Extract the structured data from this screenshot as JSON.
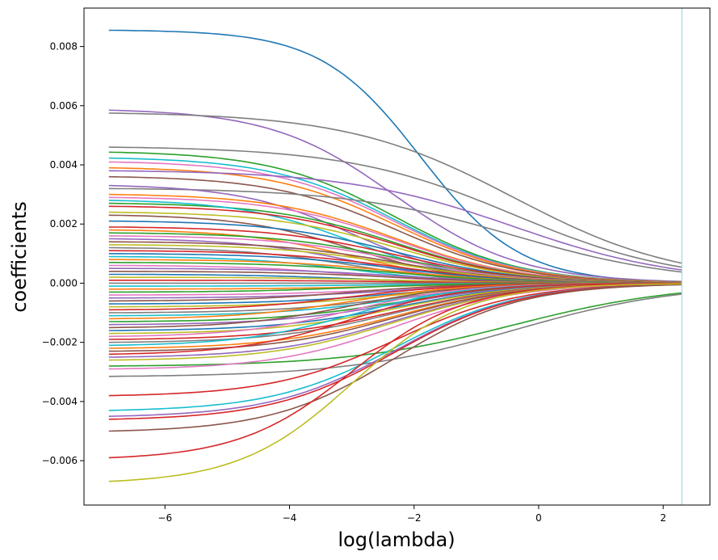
{
  "chart_data": {
    "type": "line",
    "xlabel": "log(lambda)",
    "ylabel": "coefficients",
    "xlim": [
      -7.3,
      2.75
    ],
    "ylim": [
      -0.0075,
      0.0093
    ],
    "xticks": [
      -6,
      -4,
      -2,
      0,
      2
    ],
    "xtick_labels": [
      "−6",
      "−4",
      "−2",
      "0",
      "2"
    ],
    "yticks": [
      -0.006,
      -0.004,
      -0.002,
      0.0,
      0.002,
      0.004,
      0.006,
      0.008
    ],
    "ytick_labels": [
      "−0.006",
      "−0.004",
      "−0.002",
      "0.000",
      "0.002",
      "0.004",
      "0.006",
      "0.008"
    ],
    "vline": {
      "x": 2.3,
      "color": "#add8e6"
    },
    "x_start": -6.9,
    "x_end": 2.3,
    "palette": [
      "#1f77b4",
      "#ff7f0e",
      "#2ca02c",
      "#d62728",
      "#9467bd",
      "#8c564b",
      "#e377c2",
      "#7f7f7f",
      "#bcbd22",
      "#17becf"
    ],
    "series": [
      {
        "color": "#1f77b4",
        "start": 0.00855,
        "profile": "late"
      },
      {
        "color": "#9467bd",
        "start": 0.00585,
        "profile": "med"
      },
      {
        "color": "#7f7f7f",
        "start": 0.00575,
        "profile": "slow"
      },
      {
        "color": "#7f7f7f",
        "start": 0.0046,
        "profile": "slow"
      },
      {
        "color": "#2ca02c",
        "start": 0.00443,
        "profile": "med"
      },
      {
        "color": "#17becf",
        "start": 0.00423,
        "profile": "med"
      },
      {
        "color": "#e377c2",
        "start": 0.0041,
        "profile": "med"
      },
      {
        "color": "#ff7f0e",
        "start": 0.0039,
        "profile": "med"
      },
      {
        "color": "#9467bd",
        "start": 0.0038,
        "profile": "slow"
      },
      {
        "color": "#8c564b",
        "start": 0.0036,
        "profile": "med"
      },
      {
        "color": "#7f7f7f",
        "start": 0.0032,
        "profile": "slow"
      },
      {
        "color": "#9467bd",
        "start": 0.0033,
        "profile": "fast"
      },
      {
        "color": "#ff7f0e",
        "start": 0.003,
        "profile": "med"
      },
      {
        "color": "#e377c2",
        "start": 0.0029,
        "profile": "med"
      },
      {
        "color": "#2ca02c",
        "start": 0.0027,
        "profile": "med"
      },
      {
        "color": "#17becf",
        "start": 0.0028,
        "profile": "fast"
      },
      {
        "color": "#d62728",
        "start": 0.0026,
        "profile": "med"
      },
      {
        "color": "#bcbd22",
        "start": 0.0024,
        "profile": "med"
      },
      {
        "color": "#8c564b",
        "start": 0.0023,
        "profile": "fast"
      },
      {
        "color": "#1f77b4",
        "start": 0.0021,
        "profile": "med"
      },
      {
        "color": "#d62728",
        "start": 0.0019,
        "profile": "med"
      },
      {
        "color": "#ff7f0e",
        "start": 0.0018,
        "profile": "fast"
      },
      {
        "color": "#2ca02c",
        "start": 0.0017,
        "profile": "med"
      },
      {
        "color": "#e377c2",
        "start": 0.0016,
        "profile": "med"
      },
      {
        "color": "#9467bd",
        "start": 0.0015,
        "profile": "fast"
      },
      {
        "color": "#8c564b",
        "start": 0.0014,
        "profile": "med"
      },
      {
        "color": "#bcbd22",
        "start": 0.0013,
        "profile": "med"
      },
      {
        "color": "#7f7f7f",
        "start": 0.0012,
        "profile": "fast"
      },
      {
        "color": "#d62728",
        "start": 0.0011,
        "profile": "med"
      },
      {
        "color": "#1f77b4",
        "start": 0.001,
        "profile": "med"
      },
      {
        "color": "#17becf",
        "start": 0.0009,
        "profile": "fast"
      },
      {
        "color": "#ff7f0e",
        "start": 0.0008,
        "profile": "med"
      },
      {
        "color": "#2ca02c",
        "start": 0.0007,
        "profile": "med"
      },
      {
        "color": "#e377c2",
        "start": 0.0006,
        "profile": "fast"
      },
      {
        "color": "#9467bd",
        "start": 0.0005,
        "profile": "med"
      },
      {
        "color": "#8c564b",
        "start": 0.0004,
        "profile": "med"
      },
      {
        "color": "#1f77b4",
        "start": 0.0003,
        "profile": "fast"
      },
      {
        "color": "#bcbd22",
        "start": 0.0002,
        "profile": "med"
      },
      {
        "color": "#d62728",
        "start": 0.0001,
        "profile": "med"
      },
      {
        "color": "#7f7f7f",
        "start": 0.0,
        "profile": "fast"
      },
      {
        "color": "#17becf",
        "start": -0.0001,
        "profile": "med"
      },
      {
        "color": "#ff7f0e",
        "start": -0.0002,
        "profile": "med"
      },
      {
        "color": "#2ca02c",
        "start": -0.0003,
        "profile": "fast"
      },
      {
        "color": "#e377c2",
        "start": -0.0004,
        "profile": "med"
      },
      {
        "color": "#9467bd",
        "start": -0.0005,
        "profile": "med"
      },
      {
        "color": "#8c564b",
        "start": -0.0006,
        "profile": "fast"
      },
      {
        "color": "#1f77b4",
        "start": -0.0007,
        "profile": "med"
      },
      {
        "color": "#bcbd22",
        "start": -0.0008,
        "profile": "med"
      },
      {
        "color": "#d62728",
        "start": -0.0009,
        "profile": "fast"
      },
      {
        "color": "#7f7f7f",
        "start": -0.001,
        "profile": "med"
      },
      {
        "color": "#17becf",
        "start": -0.0011,
        "profile": "med"
      },
      {
        "color": "#ff7f0e",
        "start": -0.0012,
        "profile": "fast"
      },
      {
        "color": "#2ca02c",
        "start": -0.0013,
        "profile": "med"
      },
      {
        "color": "#9467bd",
        "start": -0.0014,
        "profile": "med"
      },
      {
        "color": "#8c564b",
        "start": -0.0015,
        "profile": "fast"
      },
      {
        "color": "#1f77b4",
        "start": -0.0016,
        "profile": "med"
      },
      {
        "color": "#bcbd22",
        "start": -0.0017,
        "profile": "med"
      },
      {
        "color": "#e377c2",
        "start": -0.0018,
        "profile": "fast"
      },
      {
        "color": "#d62728",
        "start": -0.0019,
        "profile": "med"
      },
      {
        "color": "#7f7f7f",
        "start": -0.002,
        "profile": "med"
      },
      {
        "color": "#17becf",
        "start": -0.0021,
        "profile": "fast"
      },
      {
        "color": "#ff7f0e",
        "start": -0.0022,
        "profile": "med"
      },
      {
        "color": "#8c564b",
        "start": -0.0023,
        "profile": "med"
      },
      {
        "color": "#d62728",
        "start": -0.0024,
        "profile": "fast"
      },
      {
        "color": "#9467bd",
        "start": -0.0025,
        "profile": "med"
      },
      {
        "color": "#bcbd22",
        "start": -0.0026,
        "profile": "med"
      },
      {
        "color": "#2ca02c",
        "start": -0.0028,
        "profile": "slow"
      },
      {
        "color": "#e377c2",
        "start": -0.0029,
        "profile": "med"
      },
      {
        "color": "#7f7f7f",
        "start": -0.00315,
        "profile": "slow"
      },
      {
        "color": "#d62728",
        "start": -0.0038,
        "profile": "med"
      },
      {
        "color": "#17becf",
        "start": -0.0043,
        "profile": "med"
      },
      {
        "color": "#9467bd",
        "start": -0.0045,
        "profile": "med"
      },
      {
        "color": "#d62728",
        "start": -0.0046,
        "profile": "med"
      },
      {
        "color": "#8c564b",
        "start": -0.005,
        "profile": "med"
      },
      {
        "color": "#d62728",
        "start": -0.0059,
        "profile": "fast"
      },
      {
        "color": "#bcbd22",
        "start": -0.0067,
        "profile": "fast"
      }
    ]
  }
}
